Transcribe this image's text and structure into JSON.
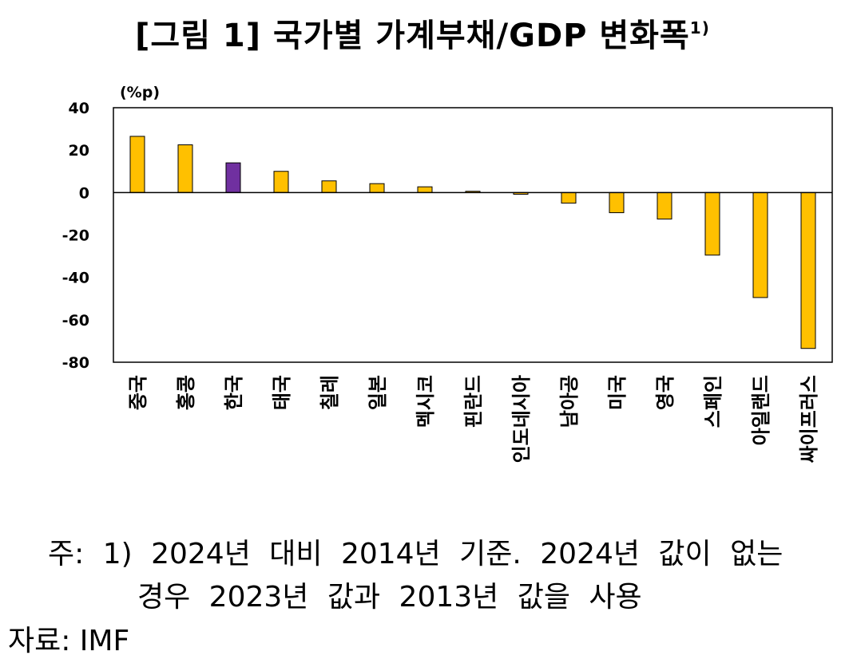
{
  "title": {
    "main": "[그림 1] 국가별 가계부채/GDP 변화폭",
    "footnote_mark": "1)"
  },
  "chart_data": {
    "type": "bar",
    "ylabel": "(%p)",
    "ylim": [
      -80,
      40
    ],
    "yticks": [
      "40",
      "20",
      "0",
      "-20",
      "-40",
      "-60",
      "-80"
    ],
    "categories": [
      "중국",
      "홍콩",
      "한국",
      "태국",
      "칠레",
      "일본",
      "멕시코",
      "핀란드",
      "인도네시아",
      "남아공",
      "미국",
      "영국",
      "스페인",
      "아일랜드",
      "싸이프러스"
    ],
    "values": [
      26.5,
      22.5,
      14,
      10,
      5.5,
      4.2,
      2.7,
      0.6,
      -0.8,
      -5,
      -9.5,
      -12.5,
      -29.5,
      -49.5,
      -73.5
    ],
    "highlight_index": 2,
    "colors": {
      "default": "#FFC000",
      "highlight": "#7030A0",
      "stroke": "#000000"
    }
  },
  "note": {
    "line1": "주: 1) 2024년 대비 2014년 기준. 2024년 값이 없는",
    "line2": "경우 2023년 값과 2013년 값을 사용"
  },
  "source": "자료: IMF"
}
